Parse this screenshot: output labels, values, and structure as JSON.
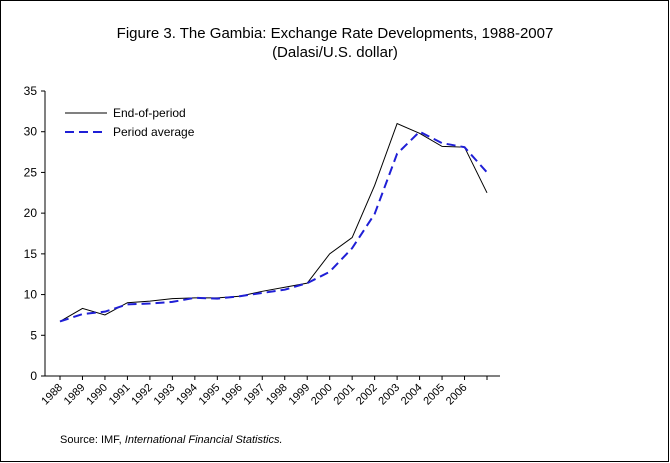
{
  "chart_data": {
    "type": "line",
    "title": "Figure 3. The Gambia: Exchange Rate Developments, 1988-2007",
    "subtitle": "(Dalasi/U.S. dollar)",
    "categories": [
      "1988",
      "1989",
      "1990",
      "1991",
      "1992",
      "1993",
      "1994",
      "1995",
      "1996",
      "1997",
      "1998",
      "1999",
      "2000",
      "2001",
      "2002",
      "2003",
      "2004",
      "2005",
      "2006",
      null
    ],
    "series": [
      {
        "name": "End-of-period",
        "color": "#000000",
        "dash": "solid",
        "values": [
          6.7,
          8.3,
          7.5,
          9.0,
          9.2,
          9.5,
          9.6,
          9.6,
          9.8,
          10.4,
          10.9,
          11.4,
          15.0,
          17.0,
          23.4,
          31.0,
          29.8,
          28.2,
          28.1,
          22.5
        ]
      },
      {
        "name": "Period average",
        "color": "#1f1fd6",
        "dash": "dashed",
        "values": [
          6.7,
          7.6,
          7.9,
          8.8,
          8.9,
          9.1,
          9.6,
          9.5,
          9.8,
          10.2,
          10.6,
          11.4,
          12.8,
          15.7,
          19.9,
          27.3,
          30.0,
          28.6,
          28.1,
          25.0
        ]
      }
    ],
    "ylim": [
      0,
      35
    ],
    "yticks": [
      0,
      5,
      10,
      15,
      20,
      25,
      30,
      35
    ],
    "grid": false,
    "legend": "top-left",
    "source": {
      "text": "Source: IMF, ",
      "italic": "International Financial Statistics."
    }
  }
}
